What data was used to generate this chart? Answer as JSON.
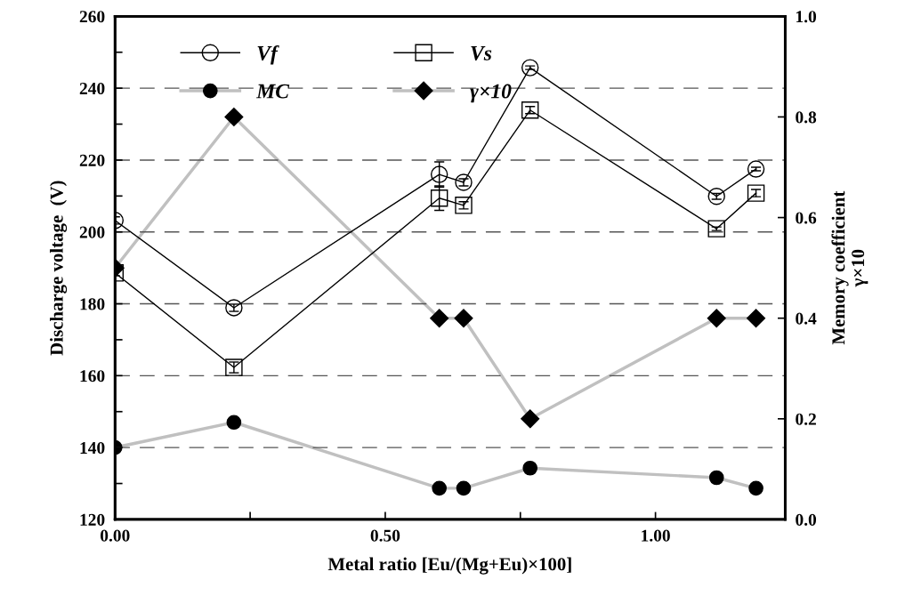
{
  "chart_data": {
    "type": "line",
    "xlabel": "Metal ratio [Eu/(Mg+Eu)×100]",
    "ylabel": "Discharge voltage  (V)",
    "y2label": "Memory coefficient\nγ×10",
    "x": [
      0,
      0.22,
      0.6,
      0.645,
      0.768,
      1.113,
      1.186
    ],
    "xlim": [
      0,
      1.24
    ],
    "xticks": [
      {
        "value": 0,
        "label": "0.00"
      },
      {
        "value": 0.25,
        "label": null
      },
      {
        "value": 0.5,
        "label": "0.50"
      },
      {
        "value": 0.75,
        "label": null
      },
      {
        "value": 1.0,
        "label": "1.00"
      }
    ],
    "ylim": [
      120,
      260
    ],
    "yticks": [
      120,
      {
        "value": 130,
        "label": null
      },
      140,
      {
        "value": 150,
        "label": null
      },
      160,
      {
        "value": 170,
        "label": null
      },
      180,
      {
        "value": 190,
        "label": null
      },
      200,
      {
        "value": 210,
        "label": null
      },
      220,
      {
        "value": 230,
        "label": null
      },
      240,
      {
        "value": 250,
        "label": null
      },
      260
    ],
    "y2lim": [
      0,
      1.0
    ],
    "y2ticks": [
      {
        "value": 0,
        "label": "0.0"
      },
      {
        "value": 0.2,
        "label": "0.2"
      },
      {
        "value": 0.4,
        "label": "0.4"
      },
      {
        "value": 0.6,
        "label": "0.6"
      },
      {
        "value": 0.8,
        "label": "0.8"
      },
      {
        "value": 1.0,
        "label": "1.0"
      }
    ],
    "grid": "y",
    "legend": "top left",
    "line_style": "solid",
    "series": [
      {
        "name": "Vf",
        "color": "#000000",
        "marker": "circle",
        "values": [
          203.2,
          178.9,
          216.0,
          213.8,
          245.7,
          209.9,
          217.5
        ],
        "errors": [
          1,
          1,
          3.5,
          1,
          0.5,
          0.8,
          0.5
        ]
      },
      {
        "name": "Vs",
        "color": "#000000",
        "marker": "square",
        "values": [
          188.6,
          162.3,
          209.4,
          207.4,
          233.9,
          200.9,
          210.8
        ],
        "errors": [
          0.8,
          1.5,
          3.4,
          1,
          1,
          0.5,
          1
        ]
      },
      {
        "name": "MC",
        "color": "#c0c0c0",
        "marker": "circle",
        "axis": "y2",
        "values": [
          0.143,
          0.193,
          0.062,
          0.062,
          0.102,
          0.083,
          0.062
        ]
      },
      {
        "name": "γ×10",
        "color": "#c0c0c0",
        "marker": "diamond",
        "axis": "y2",
        "values": [
          0.5,
          0.8,
          0.4,
          0.4,
          0.2,
          0.4,
          0.4
        ]
      }
    ]
  }
}
